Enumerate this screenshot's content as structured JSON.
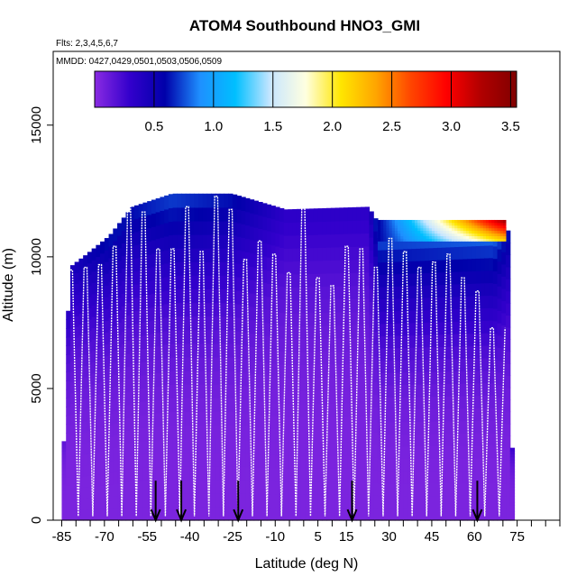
{
  "chart_data": {
    "type": "heatmap",
    "title": "ATOM4 Southbound HNO3_GMI",
    "flights_label": "Flts: 2,3,4,5,6,7",
    "dates_label": "MMDD: 0427,0429,0501,0503,0506,0509",
    "xlabel": "Latitude (deg N)",
    "ylabel": "Altitude (m)",
    "xlim": [
      -88,
      90
    ],
    "ylim": [
      0,
      17800
    ],
    "x_ticks": [
      "-85",
      "-70",
      "-55",
      "-40",
      "-25",
      "-10",
      "5",
      "15",
      "30",
      "45",
      "60",
      "75"
    ],
    "x_tick_values": [
      -85,
      -70,
      -55,
      -40,
      -25,
      -10,
      5,
      15,
      30,
      45,
      60,
      75
    ],
    "y_ticks": [
      "0",
      "5000",
      "10000",
      "15000"
    ],
    "y_tick_values": [
      0,
      5000,
      10000,
      15000
    ],
    "colorbar": {
      "min": 0,
      "max": 3.55,
      "labels": [
        "0.5",
        "1.0",
        "1.5",
        "2.0",
        "2.5",
        "3.0",
        "3.5"
      ],
      "label_values": [
        0.5,
        1.0,
        1.5,
        2.0,
        2.5,
        3.0,
        3.5
      ],
      "colors": [
        "#8a2be2",
        "#3300cc",
        "#0000aa",
        "#1e90ff",
        "#00bfff",
        "#c8e6ff",
        "#ffffe0",
        "#ffe600",
        "#ffa500",
        "#ff4500",
        "#ff0000",
        "#b00000",
        "#800000"
      ]
    },
    "arrows_latitude": [
      -52,
      -43,
      -23,
      17,
      61
    ],
    "curtain": [
      {
        "lat": -85,
        "top": 3000,
        "val": 0.1
      },
      {
        "lat": -83,
        "top": 9600,
        "val": 0.4
      },
      {
        "lat": -77,
        "top": 10100,
        "val": 0.5
      },
      {
        "lat": -69,
        "top": 10800,
        "val": 0.6
      },
      {
        "lat": -61,
        "top": 11900,
        "val": 0.6
      },
      {
        "lat": -47,
        "top": 12400,
        "val": 0.7
      },
      {
        "lat": -26,
        "top": 12400,
        "val": 0.6
      },
      {
        "lat": -7,
        "top": 11800,
        "val": 0.3
      },
      {
        "lat": 22,
        "top": 11900,
        "val": 0.3
      },
      {
        "lat": 26,
        "top": 11200,
        "val": 0.8
      },
      {
        "lat": 66,
        "top": 11400,
        "val": 0.9
      },
      {
        "lat": 71,
        "top": 11000,
        "val": 0.6
      },
      {
        "lat": 73,
        "top": 0,
        "val": 0.1
      }
    ],
    "ut_enhancement": {
      "lat_start": 26,
      "lat_end": 71,
      "alt_low": 10600,
      "alt_high": 11400,
      "max_value": 3.4
    },
    "flight_track_tops": [
      9500,
      9600,
      9700,
      10400,
      11900,
      11700,
      10300,
      10300,
      11900,
      10200,
      12300,
      11800,
      9900,
      10600,
      10100,
      9400,
      11900,
      9200,
      8900,
      10400,
      10300,
      9600,
      10700,
      10200,
      9600,
      9800,
      10100,
      9200,
      8700,
      7300
    ]
  }
}
